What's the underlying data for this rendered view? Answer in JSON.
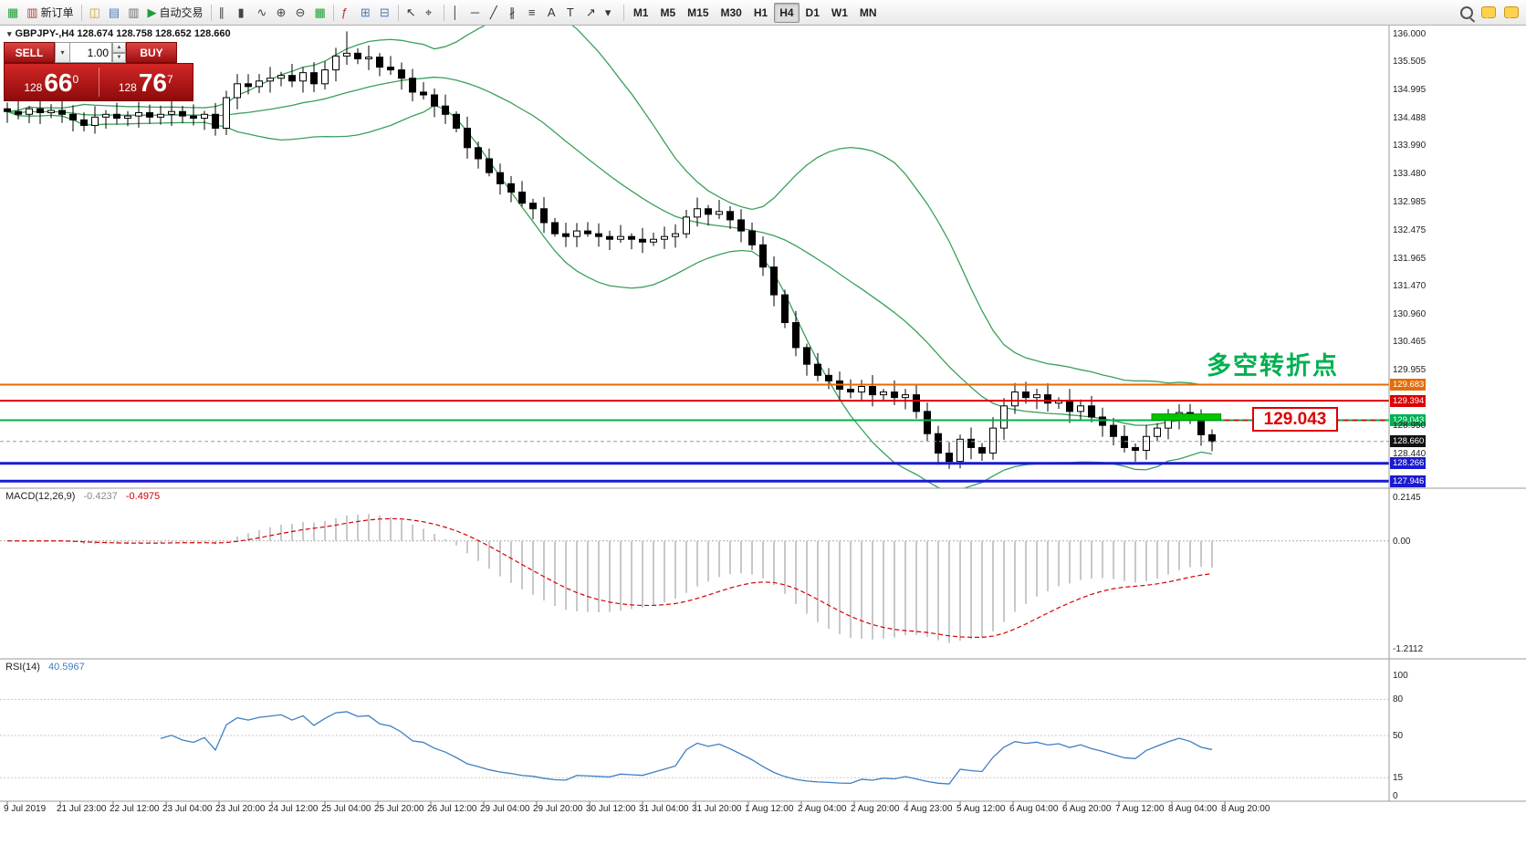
{
  "colors": {
    "bull": "#ffffff",
    "bear": "#000000",
    "band": "#3aa05a",
    "macd_hist": "#c8c8c8",
    "macd_signal": "#d40000",
    "rsi_line": "#3e7fc1",
    "zone": "#00c800",
    "current_tag": "#111111"
  },
  "toolbar": {
    "groups": [
      {
        "items": [
          {
            "name": "app-icon",
            "glyph": "▦",
            "color": "#1f9d35"
          },
          {
            "name": "new-order-button",
            "glyph": "▥",
            "color": "#c0392b",
            "label": "新订单"
          }
        ]
      },
      {
        "sep": true
      },
      {
        "items": [
          {
            "name": "new-chart-icon",
            "glyph": "◫",
            "color": "#c9a227"
          },
          {
            "name": "profiles-icon",
            "glyph": "▤",
            "color": "#4a7ab5"
          },
          {
            "name": "terminal-icon",
            "glyph": "▥",
            "color": "#6b6b6b"
          },
          {
            "name": "autotrade-button",
            "glyph": "▶",
            "color": "#1f9d35",
            "label": "自动交易"
          }
        ]
      },
      {
        "sep": true
      },
      {
        "items": [
          {
            "name": "bar-chart-icon",
            "glyph": "∥",
            "color": "#444444"
          },
          {
            "name": "candlestick-chart-icon",
            "glyph": "▮",
            "color": "#444444"
          },
          {
            "name": "line-chart-icon",
            "glyph": "∿",
            "color": "#444444"
          },
          {
            "name": "zoom-in-icon",
            "glyph": "⊕",
            "color": "#444444"
          },
          {
            "name": "zoom-out-icon",
            "glyph": "⊖",
            "color": "#444444"
          },
          {
            "name": "grid-icon",
            "glyph": "▦",
            "color": "#1f9d35"
          }
        ]
      },
      {
        "sep": true
      },
      {
        "items": [
          {
            "name": "indicators-icon",
            "glyph": "ƒ",
            "color": "#b03030"
          },
          {
            "name": "tile-windows-icon",
            "glyph": "⊞",
            "color": "#4a7ab5"
          },
          {
            "name": "cascade-windows-icon",
            "glyph": "⊟",
            "color": "#4a7ab5"
          }
        ]
      },
      {
        "sep": true
      },
      {
        "items": [
          {
            "name": "cursor-icon",
            "glyph": "↖",
            "color": "#333333"
          },
          {
            "name": "crosshair-icon",
            "glyph": "⌖",
            "color": "#333333"
          }
        ]
      },
      {
        "sep": true
      },
      {
        "items": [
          {
            "name": "vertical-line-icon",
            "glyph": "│",
            "color": "#333333"
          },
          {
            "name": "horizontal-line-icon",
            "glyph": "─",
            "color": "#333333"
          },
          {
            "name": "trendline-icon",
            "glyph": "╱",
            "color": "#333333"
          },
          {
            "name": "channel-icon",
            "glyph": "∦",
            "color": "#333333"
          },
          {
            "name": "fibonacci-icon",
            "glyph": "≡",
            "color": "#333333"
          },
          {
            "name": "text-icon",
            "glyph": "A",
            "color": "#333333"
          },
          {
            "name": "label-icon",
            "glyph": "T",
            "color": "#333333"
          },
          {
            "name": "arrows-icon",
            "glyph": "↗",
            "color": "#333333"
          },
          {
            "name": "objects-dropdown-icon",
            "glyph": "▾",
            "color": "#333333"
          }
        ]
      },
      {
        "sep": true
      },
      {
        "items": [
          {
            "name": "timeframe-m1-button",
            "label": "M1",
            "tf": true
          },
          {
            "name": "timeframe-m5-button",
            "label": "M5",
            "tf": true
          },
          {
            "name": "timeframe-m15-button",
            "label": "M15",
            "tf": true
          },
          {
            "name": "timeframe-m30-button",
            "label": "M30",
            "tf": true
          },
          {
            "name": "timeframe-h1-button",
            "label": "H1",
            "tf": true
          },
          {
            "name": "timeframe-h4-button",
            "label": "H4",
            "tf": true,
            "active": true
          },
          {
            "name": "timeframe-d1-button",
            "label": "D1",
            "tf": true
          },
          {
            "name": "timeframe-w1-button",
            "label": "W1",
            "tf": true
          },
          {
            "name": "timeframe-mn-button",
            "label": "MN",
            "tf": true
          }
        ]
      },
      {
        "spacer": true
      },
      {
        "items": [
          {
            "name": "search-icon",
            "css": "magnifier"
          },
          {
            "name": "chat-icon",
            "css": "bubble"
          },
          {
            "name": "community-icon",
            "css": "bubble"
          }
        ]
      }
    ]
  },
  "symbol_header": {
    "expand_glyph": "▾",
    "text": "GBPJPY-,H4 128.674 128.758 128.652 128.660"
  },
  "trade_panel": {
    "sell_label": "SELL",
    "buy_label": "BUY",
    "volume": "1.00",
    "dropdown_glyph": "▾",
    "up_glyph": "▲",
    "down_glyph": "▼",
    "sell_price": {
      "prefix": "128",
      "big": "66",
      "sup": "0"
    },
    "buy_price": {
      "prefix": "128",
      "big": "76",
      "sup": "7"
    }
  },
  "annotations": {
    "turning_point_text": "多空转折点",
    "turning_point_color": "#00b050",
    "price_callout": "129.043",
    "callout_color": "#dd0000",
    "green_zone": {
      "price_top": 129.155,
      "price_bottom": 129.045,
      "from_index": 104.5,
      "to_index": 110.8
    }
  },
  "chart_data": {
    "type": "candlestick",
    "symbol": "GBPJPY-",
    "timeframe": "H4",
    "closes": [
      134.6,
      134.55,
      134.65,
      134.58,
      134.62,
      134.55,
      134.45,
      134.35,
      134.5,
      134.55,
      134.48,
      134.52,
      134.58,
      134.5,
      134.55,
      134.6,
      134.52,
      134.48,
      134.55,
      134.3,
      134.85,
      135.1,
      135.05,
      135.15,
      135.2,
      135.25,
      135.15,
      135.3,
      135.1,
      135.35,
      135.6,
      135.65,
      135.55,
      135.58,
      135.4,
      135.35,
      135.2,
      134.95,
      134.9,
      134.7,
      134.55,
      134.3,
      133.95,
      133.75,
      133.5,
      133.3,
      133.15,
      132.95,
      132.85,
      132.6,
      132.4,
      132.35,
      132.45,
      132.4,
      132.35,
      132.3,
      132.35,
      132.3,
      132.25,
      132.3,
      132.35,
      132.4,
      132.7,
      132.85,
      132.75,
      132.8,
      132.65,
      132.45,
      132.2,
      131.8,
      131.3,
      130.8,
      130.35,
      130.05,
      129.85,
      129.75,
      129.6,
      129.55,
      129.65,
      129.5,
      129.55,
      129.45,
      129.5,
      129.2,
      128.8,
      128.45,
      128.3,
      128.7,
      128.55,
      128.45,
      128.9,
      129.3,
      129.55,
      129.45,
      129.5,
      129.35,
      129.4,
      129.2,
      129.3,
      129.1,
      128.95,
      128.75,
      128.55,
      128.5,
      128.75,
      128.9,
      129.05,
      129.18,
      129.05,
      128.78,
      128.66
    ],
    "price_axis_ticks": [
      "136.000",
      "135.505",
      "134.995",
      "134.488",
      "133.990",
      "133.480",
      "132.985",
      "132.475",
      "131.965",
      "131.470",
      "130.960",
      "130.465",
      "129.955",
      "128.950",
      "128.440"
    ],
    "levels": [
      {
        "label": "129.683",
        "value": 129.683,
        "color": "#e36c09",
        "width": 2
      },
      {
        "label": "129.394",
        "value": 129.394,
        "color": "#dd0000",
        "width": 2
      },
      {
        "label": "129.043",
        "value": 129.043,
        "color": "#00b050",
        "width": 2
      },
      {
        "label": "128.266",
        "value": 128.266,
        "color": "#1a1ad2",
        "width": 3
      },
      {
        "label": "127.946",
        "value": 127.946,
        "color": "#1a1ad2",
        "width": 3
      }
    ],
    "current_price": {
      "label": "128.660",
      "value": 128.66
    },
    "time_labels": [
      "9 Jul 2019",
      "21 Jul 23:00",
      "22 Jul 12:00",
      "23 Jul 04:00",
      "23 Jul 20:00",
      "24 Jul 12:00",
      "25 Jul 04:00",
      "25 Jul 20:00",
      "26 Jul 12:00",
      "29 Jul 04:00",
      "29 Jul 20:00",
      "30 Jul 12:00",
      "31 Jul 04:00",
      "31 Jul 20:00",
      "1 Aug 12:00",
      "2 Aug 04:00",
      "2 Aug 20:00",
      "4 Aug 23:00",
      "5 Aug 12:00",
      "6 Aug 04:00",
      "6 Aug 20:00",
      "7 Aug 12:00",
      "8 Aug 04:00",
      "8 Aug 20:00"
    ],
    "indicators": {
      "macd": {
        "label": "MACD(12,26,9)",
        "value_main": "-0.4237",
        "value_signal": "-0.4975",
        "axis": [
          "0.2145",
          "0.00",
          "-1.2112"
        ]
      },
      "rsi": {
        "label": "RSI(14)",
        "value": "40.5967",
        "axis": [
          "100",
          "80",
          "50",
          "15",
          "0"
        ],
        "levels": [
          80,
          50,
          15
        ]
      }
    }
  }
}
